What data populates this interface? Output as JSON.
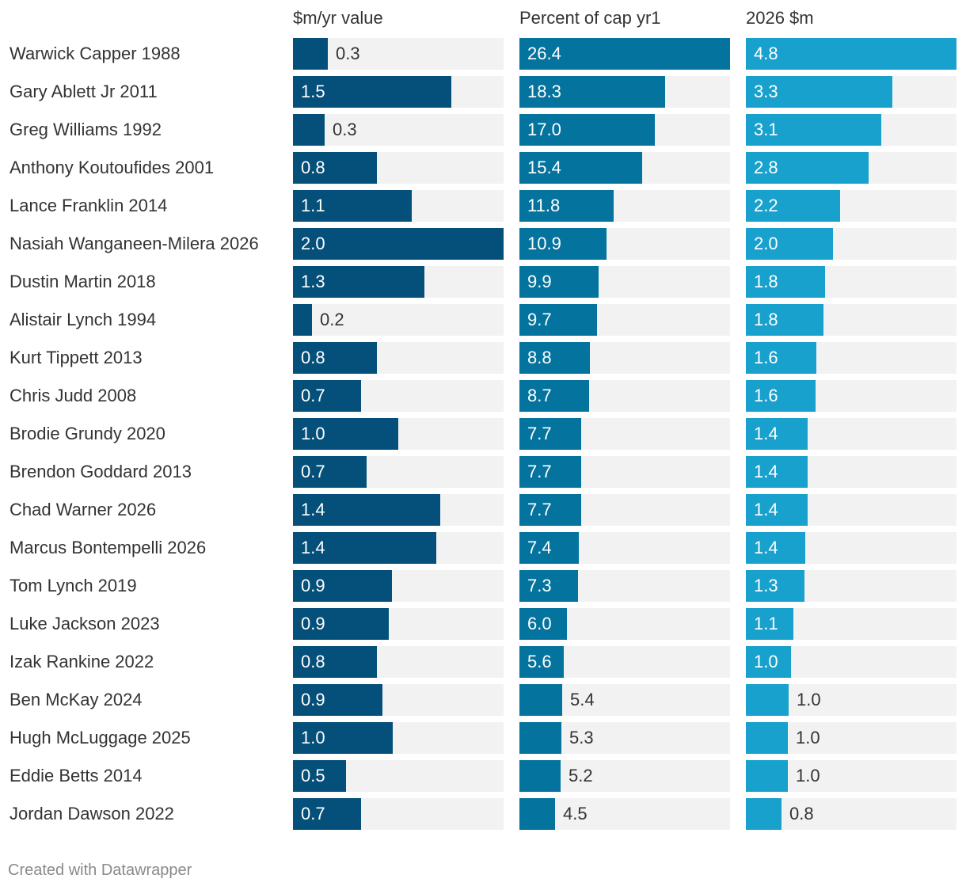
{
  "chart_data": {
    "type": "bar",
    "credit": "Created with Datawrapper",
    "categories": [
      "Warwick Capper 1988",
      "Gary Ablett Jr 2011",
      "Greg Williams 1992",
      "Anthony Koutoufides 2001",
      "Lance Franklin 2014",
      "Nasiah Wanganeen-Milera 2026",
      "Dustin Martin 2018",
      "Alistair Lynch 1994",
      "Kurt Tippett 2013",
      "Chris Judd 2008",
      "Brodie Grundy 2020",
      "Brendon Goddard 2013",
      "Chad Warner 2026",
      "Marcus Bontempelli 2026",
      "Tom Lynch 2019",
      "Luke Jackson 2023",
      "Izak Rankine 2022",
      "Ben McKay 2024",
      "Hugh McLuggage 2025",
      "Eddie Betts 2014",
      "Jordan Dawson 2022"
    ],
    "series": [
      {
        "name": "$m/yr value",
        "color": "#04507a",
        "max": 2.0,
        "labels": [
          "0.3",
          "1.5",
          "0.3",
          "0.8",
          "1.1",
          "2.0",
          "1.3",
          "0.2",
          "0.8",
          "0.7",
          "1.0",
          "0.7",
          "1.4",
          "1.4",
          "0.9",
          "0.9",
          "0.8",
          "0.9",
          "1.0",
          "0.5",
          "0.7"
        ],
        "values": [
          0.33,
          1.5,
          0.3,
          0.8,
          1.13,
          2.0,
          1.25,
          0.18,
          0.8,
          0.65,
          1.0,
          0.7,
          1.4,
          1.36,
          0.94,
          0.91,
          0.8,
          0.85,
          0.95,
          0.5,
          0.65
        ]
      },
      {
        "name": "Percent of cap yr1",
        "color": "#04739e",
        "max": 26.4,
        "labels": [
          "26.4",
          "18.3",
          "17.0",
          "15.4",
          "11.8",
          "10.9",
          "9.9",
          "9.7",
          "8.8",
          "8.7",
          "7.7",
          "7.7",
          "7.7",
          "7.4",
          "7.3",
          "6.0",
          "5.6",
          "5.4",
          "5.3",
          "5.2",
          "4.5"
        ],
        "values": [
          26.4,
          18.3,
          17.0,
          15.4,
          11.8,
          10.9,
          9.9,
          9.7,
          8.8,
          8.7,
          7.7,
          7.7,
          7.7,
          7.4,
          7.3,
          6.0,
          5.6,
          5.4,
          5.3,
          5.2,
          4.5
        ]
      },
      {
        "name": "2026 $m",
        "color": "#18a1cd",
        "max": 4.8,
        "labels": [
          "4.8",
          "3.3",
          "3.1",
          "2.8",
          "2.2",
          "2.0",
          "1.8",
          "1.8",
          "1.6",
          "1.6",
          "1.4",
          "1.4",
          "1.4",
          "1.4",
          "1.3",
          "1.1",
          "1.0",
          "1.0",
          "1.0",
          "1.0",
          "0.8"
        ],
        "values": [
          4.8,
          3.33,
          3.09,
          2.8,
          2.15,
          1.98,
          1.8,
          1.77,
          1.6,
          1.58,
          1.4,
          1.4,
          1.4,
          1.35,
          1.33,
          1.09,
          1.02,
          0.98,
          0.96,
          0.95,
          0.82
        ]
      }
    ]
  }
}
